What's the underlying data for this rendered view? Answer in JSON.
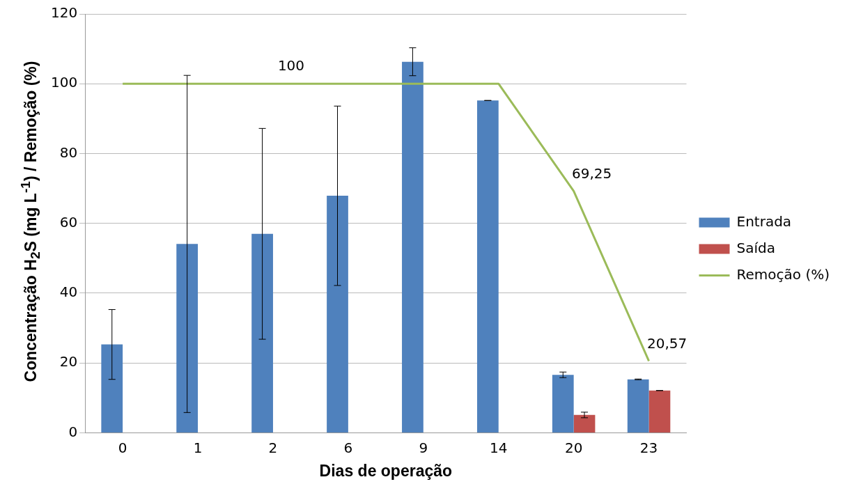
{
  "chart_data": {
    "type": "bar",
    "xlabel": "Dias de operação",
    "ylabel": "Concentração H$_{2}$S (mg L$^{-1}$) / Remoção (%)",
    "categories": [
      "0",
      "1",
      "2",
      "6",
      "9",
      "14",
      "20",
      "23"
    ],
    "series": [
      {
        "name": "Entrada",
        "color": "#4f81bd",
        "values": [
          25.3,
          54.1,
          57.0,
          67.9,
          106.3,
          95.2,
          16.6,
          15.3
        ],
        "errors": [
          10,
          48.3,
          30.2,
          25.7,
          4,
          0,
          0.8,
          0.1
        ]
      },
      {
        "name": "Saída",
        "color": "#c0504d",
        "values": [
          null,
          null,
          null,
          null,
          null,
          null,
          5.1,
          12.1
        ],
        "errors": [
          null,
          null,
          null,
          null,
          null,
          null,
          0.8,
          0
        ]
      },
      {
        "name": "Remoção (%)",
        "type": "line",
        "color": "#9bbb59",
        "marker": "none",
        "values": [
          100,
          100,
          100,
          100,
          100,
          100,
          69.25,
          20.57
        ],
        "value_labels": [
          null,
          null,
          "100",
          null,
          null,
          null,
          "69,25",
          "20,57"
        ]
      }
    ],
    "ylim": [
      0,
      120
    ],
    "yticks": [
      0,
      20,
      40,
      60,
      80,
      100,
      120
    ],
    "grid": "y",
    "legend": "right"
  }
}
